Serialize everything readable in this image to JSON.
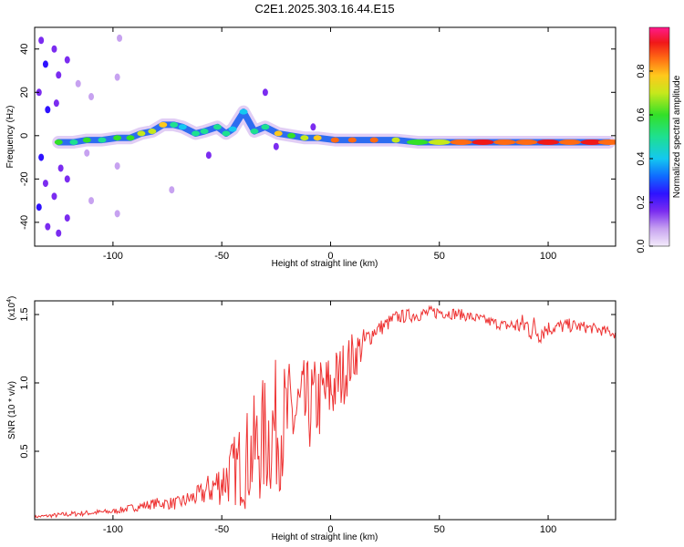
{
  "figure_title": "C2E1.2025.303.16.44.E15",
  "colors": {
    "snr_line": "#ee3333",
    "frame": "#000000"
  },
  "chart_data": [
    {
      "type": "heatmap",
      "title": "C2E1.2025.303.16.44.E15",
      "xlabel": "Height of straight line (km)",
      "ylabel": "Frequency (Hz)",
      "xlim": [
        -136,
        131
      ],
      "ylim": [
        -51,
        50
      ],
      "xticks": [
        -100,
        -50,
        0,
        50,
        100
      ],
      "yticks": [
        -40,
        -20,
        0,
        20,
        40
      ],
      "xtick_labels": [
        "-100",
        "-50",
        "0",
        "50",
        "100"
      ],
      "ytick_labels": [
        "-40",
        "-20",
        "0",
        "20",
        "40"
      ],
      "colorbar": {
        "label": "Normalized spectral amplitude",
        "range": [
          0,
          1
        ],
        "ticks": [
          0.0,
          0.2,
          0.4,
          0.6,
          0.8
        ],
        "tick_labels": [
          "0.0",
          "0.2",
          "0.4",
          "0.6",
          "0.8"
        ]
      },
      "ridge": [
        {
          "x": -125,
          "y": -3,
          "amp": 0.6
        },
        {
          "x": -118,
          "y": -3,
          "amp": 0.5
        },
        {
          "x": -112,
          "y": -2,
          "amp": 0.55
        },
        {
          "x": -105,
          "y": -2,
          "amp": 0.5
        },
        {
          "x": -98,
          "y": -1,
          "amp": 0.6
        },
        {
          "x": -92,
          "y": -1,
          "amp": 0.55
        },
        {
          "x": -87,
          "y": 1,
          "amp": 0.7
        },
        {
          "x": -82,
          "y": 2,
          "amp": 0.65
        },
        {
          "x": -77,
          "y": 5,
          "amp": 0.75
        },
        {
          "x": -72,
          "y": 5,
          "amp": 0.5
        },
        {
          "x": -68,
          "y": 4,
          "amp": 0.4
        },
        {
          "x": -62,
          "y": 1,
          "amp": 0.45
        },
        {
          "x": -58,
          "y": 2,
          "amp": 0.5
        },
        {
          "x": -52,
          "y": 4,
          "amp": 0.45
        },
        {
          "x": -48,
          "y": 1,
          "amp": 0.5
        },
        {
          "x": -45,
          "y": 3,
          "amp": 0.4
        },
        {
          "x": -40,
          "y": 11,
          "amp": 0.4
        },
        {
          "x": -35,
          "y": 2,
          "amp": 0.5
        },
        {
          "x": -30,
          "y": 4,
          "amp": 0.45
        },
        {
          "x": -24,
          "y": 1,
          "amp": 0.75
        },
        {
          "x": -18,
          "y": 0,
          "amp": 0.6
        },
        {
          "x": -12,
          "y": -1,
          "amp": 0.65
        },
        {
          "x": -6,
          "y": -1,
          "amp": 0.75
        },
        {
          "x": 2,
          "y": -2,
          "amp": 0.85
        },
        {
          "x": 10,
          "y": -2,
          "amp": 0.8
        },
        {
          "x": 20,
          "y": -2,
          "amp": 0.85
        },
        {
          "x": 30,
          "y": -2,
          "amp": 0.7
        },
        {
          "x": 40,
          "y": -3,
          "amp": 0.6
        },
        {
          "x": 50,
          "y": -3,
          "amp": 0.7
        },
        {
          "x": 60,
          "y": -3,
          "amp": 0.85
        },
        {
          "x": 70,
          "y": -3,
          "amp": 0.9
        },
        {
          "x": 80,
          "y": -3,
          "amp": 0.85
        },
        {
          "x": 90,
          "y": -3,
          "amp": 0.8
        },
        {
          "x": 100,
          "y": -3,
          "amp": 0.9
        },
        {
          "x": 110,
          "y": -3,
          "amp": 0.85
        },
        {
          "x": 120,
          "y": -3,
          "amp": 0.9
        },
        {
          "x": 128,
          "y": -3,
          "amp": 0.85
        }
      ],
      "noise_points": [
        {
          "x": -133,
          "y": 44,
          "amp": 0.15
        },
        {
          "x": -131,
          "y": 33,
          "amp": 0.2
        },
        {
          "x": -134,
          "y": 20,
          "amp": 0.15
        },
        {
          "x": -130,
          "y": 12,
          "amp": 0.2
        },
        {
          "x": -133,
          "y": -10,
          "amp": 0.2
        },
        {
          "x": -131,
          "y": -22,
          "amp": 0.15
        },
        {
          "x": -134,
          "y": -33,
          "amp": 0.2
        },
        {
          "x": -130,
          "y": -42,
          "amp": 0.15
        },
        {
          "x": -127,
          "y": 40,
          "amp": 0.12
        },
        {
          "x": -125,
          "y": 28,
          "amp": 0.1
        },
        {
          "x": -126,
          "y": 15,
          "amp": 0.12
        },
        {
          "x": -124,
          "y": -15,
          "amp": 0.1
        },
        {
          "x": -127,
          "y": -28,
          "amp": 0.12
        },
        {
          "x": -125,
          "y": -45,
          "amp": 0.1
        },
        {
          "x": -121,
          "y": 35,
          "amp": 0.1
        },
        {
          "x": -121,
          "y": -20,
          "amp": 0.1
        },
        {
          "x": -121,
          "y": -38,
          "amp": 0.1
        },
        {
          "x": -116,
          "y": 24,
          "amp": 0.08
        },
        {
          "x": -112,
          "y": -8,
          "amp": 0.08
        },
        {
          "x": -110,
          "y": 18,
          "amp": 0.08
        },
        {
          "x": -110,
          "y": -30,
          "amp": 0.08
        },
        {
          "x": -97,
          "y": 45,
          "amp": 0.08
        },
        {
          "x": -98,
          "y": 27,
          "amp": 0.08
        },
        {
          "x": -98,
          "y": -14,
          "amp": 0.08
        },
        {
          "x": -98,
          "y": -36,
          "amp": 0.08
        },
        {
          "x": -30,
          "y": 20,
          "amp": 0.1
        },
        {
          "x": -73,
          "y": -25,
          "amp": 0.08
        },
        {
          "x": -56,
          "y": -9,
          "amp": 0.15
        },
        {
          "x": -25,
          "y": -5,
          "amp": 0.15
        },
        {
          "x": -8,
          "y": 4,
          "amp": 0.15
        }
      ]
    },
    {
      "type": "line",
      "xlabel": "Height of straight line (km)",
      "ylabel": "SNR (10 * v/v)",
      "scale_label": "(x10",
      "scale_exponent": "4",
      "scale_close": ")",
      "xlim": [
        -136,
        131
      ],
      "ylim": [
        0.0,
        1.6
      ],
      "xticks": [
        -100,
        -50,
        0,
        50,
        100
      ],
      "yticks": [
        0.5,
        1.0,
        1.5
      ],
      "xtick_labels": [
        "-100",
        "-50",
        "0",
        "50",
        "100"
      ],
      "ytick_labels": [
        "0.5",
        "1.0",
        "1.5"
      ],
      "x": [
        -136,
        -120,
        -100,
        -90,
        -80,
        -70,
        -60,
        -50,
        -45,
        -40,
        -35,
        -30,
        -25,
        -20,
        -15,
        -10,
        -5,
        0,
        5,
        10,
        15,
        20,
        25,
        30,
        40,
        50,
        60,
        70,
        80,
        90,
        95,
        100,
        110,
        120,
        131
      ],
      "y": [
        0.02,
        0.04,
        0.06,
        0.09,
        0.12,
        0.12,
        0.18,
        0.28,
        0.35,
        0.42,
        0.5,
        0.6,
        0.68,
        0.72,
        0.78,
        0.82,
        0.88,
        0.95,
        1.05,
        1.18,
        1.28,
        1.38,
        1.42,
        1.48,
        1.5,
        1.52,
        1.5,
        1.46,
        1.42,
        1.42,
        1.38,
        1.4,
        1.42,
        1.4,
        1.36
      ],
      "noise": [
        0.01,
        0.02,
        0.02,
        0.03,
        0.04,
        0.05,
        0.08,
        0.18,
        0.25,
        0.35,
        0.42,
        0.48,
        0.5,
        0.45,
        0.4,
        0.35,
        0.32,
        0.3,
        0.25,
        0.2,
        0.12,
        0.06,
        0.06,
        0.05,
        0.05,
        0.05,
        0.04,
        0.04,
        0.04,
        0.1,
        0.12,
        0.06,
        0.05,
        0.04,
        0.04
      ]
    }
  ]
}
